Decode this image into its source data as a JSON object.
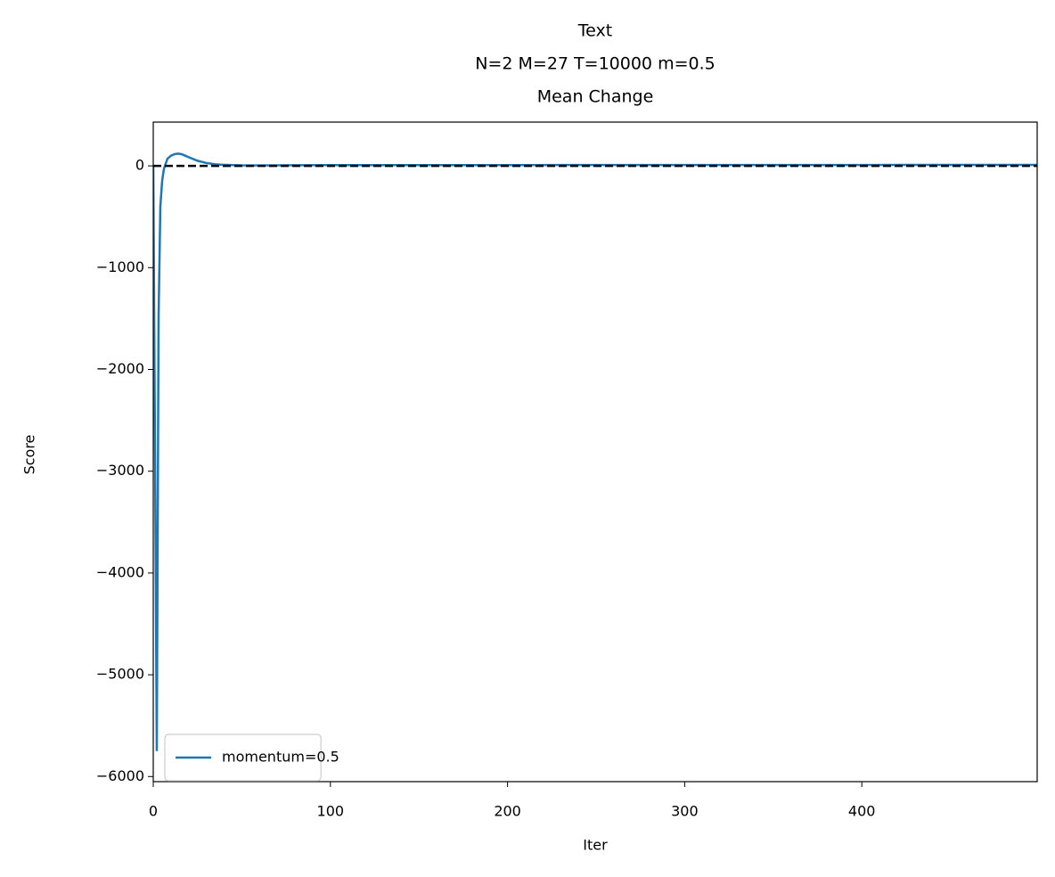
{
  "chart_data": {
    "type": "line",
    "title": [
      "Text",
      "N=2 M=27 T=10000 m=0.5",
      "Mean Change"
    ],
    "xlabel": "Iter",
    "ylabel": "Score",
    "x": [
      0,
      1,
      2,
      3,
      4,
      5,
      6,
      8,
      10,
      12,
      14,
      16,
      18,
      20,
      25,
      30,
      35,
      40,
      50,
      60,
      80,
      100,
      150,
      200,
      300,
      400,
      499
    ],
    "series": [
      {
        "name": "momentum=0.5",
        "color": "#1f77b4",
        "values": [
          0,
          -2800,
          -5750,
          -1500,
          -400,
          -150,
          -30,
          70,
          100,
          115,
          120,
          115,
          100,
          85,
          50,
          28,
          15,
          10,
          5,
          4,
          6,
          7,
          8,
          8,
          9,
          9,
          10
        ]
      }
    ],
    "hline": 0,
    "xlim": [
      0,
      499
    ],
    "ylim": [
      -6050,
      430
    ],
    "xticks": [
      0,
      100,
      200,
      300,
      400
    ],
    "yticks": [
      0,
      {
        "value": -1000,
        "label": "−1000"
      },
      {
        "value": -2000,
        "label": "−2000"
      },
      {
        "value": -3000,
        "label": "−3000"
      },
      {
        "value": -4000,
        "label": "−4000"
      },
      {
        "value": -5000,
        "label": "−5000"
      },
      {
        "value": -6000,
        "label": "−6000"
      }
    ],
    "legend": "lower left"
  }
}
